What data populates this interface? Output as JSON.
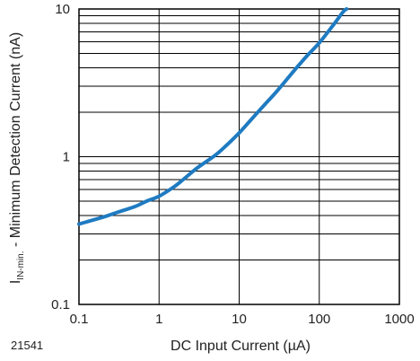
{
  "chart_data": {
    "type": "line",
    "figure_id": "21541",
    "xlabel": "DC Input Current (µA)",
    "ylabel_main": "I",
    "ylabel_sub": "IN-min.",
    "ylabel_rest": " - Minimum Detection Current (nA)",
    "x_scale": "log",
    "y_scale": "log",
    "xlim": [
      0.1,
      1000
    ],
    "ylim": [
      0.1,
      10
    ],
    "x_ticks": [
      0.1,
      1,
      10,
      100,
      1000
    ],
    "x_tick_labels": [
      "0.1",
      "1",
      "10",
      "100",
      "1000"
    ],
    "y_ticks": [
      0.1,
      1,
      10
    ],
    "y_tick_labels": [
      "0.1",
      "1",
      "10"
    ],
    "grid": true,
    "line_color": "#1f7bc1",
    "series": [
      {
        "x": [
          0.1,
          0.2,
          0.3,
          0.5,
          0.7,
          1,
          1.5,
          2,
          3,
          5,
          7,
          10,
          15,
          20,
          30,
          50,
          70,
          100,
          150,
          200,
          220
        ],
        "y": [
          0.35,
          0.39,
          0.42,
          0.46,
          0.5,
          0.54,
          0.62,
          0.7,
          0.84,
          1.02,
          1.2,
          1.45,
          1.85,
          2.2,
          2.8,
          3.9,
          4.8,
          5.9,
          7.8,
          9.6,
          10
        ]
      }
    ]
  }
}
